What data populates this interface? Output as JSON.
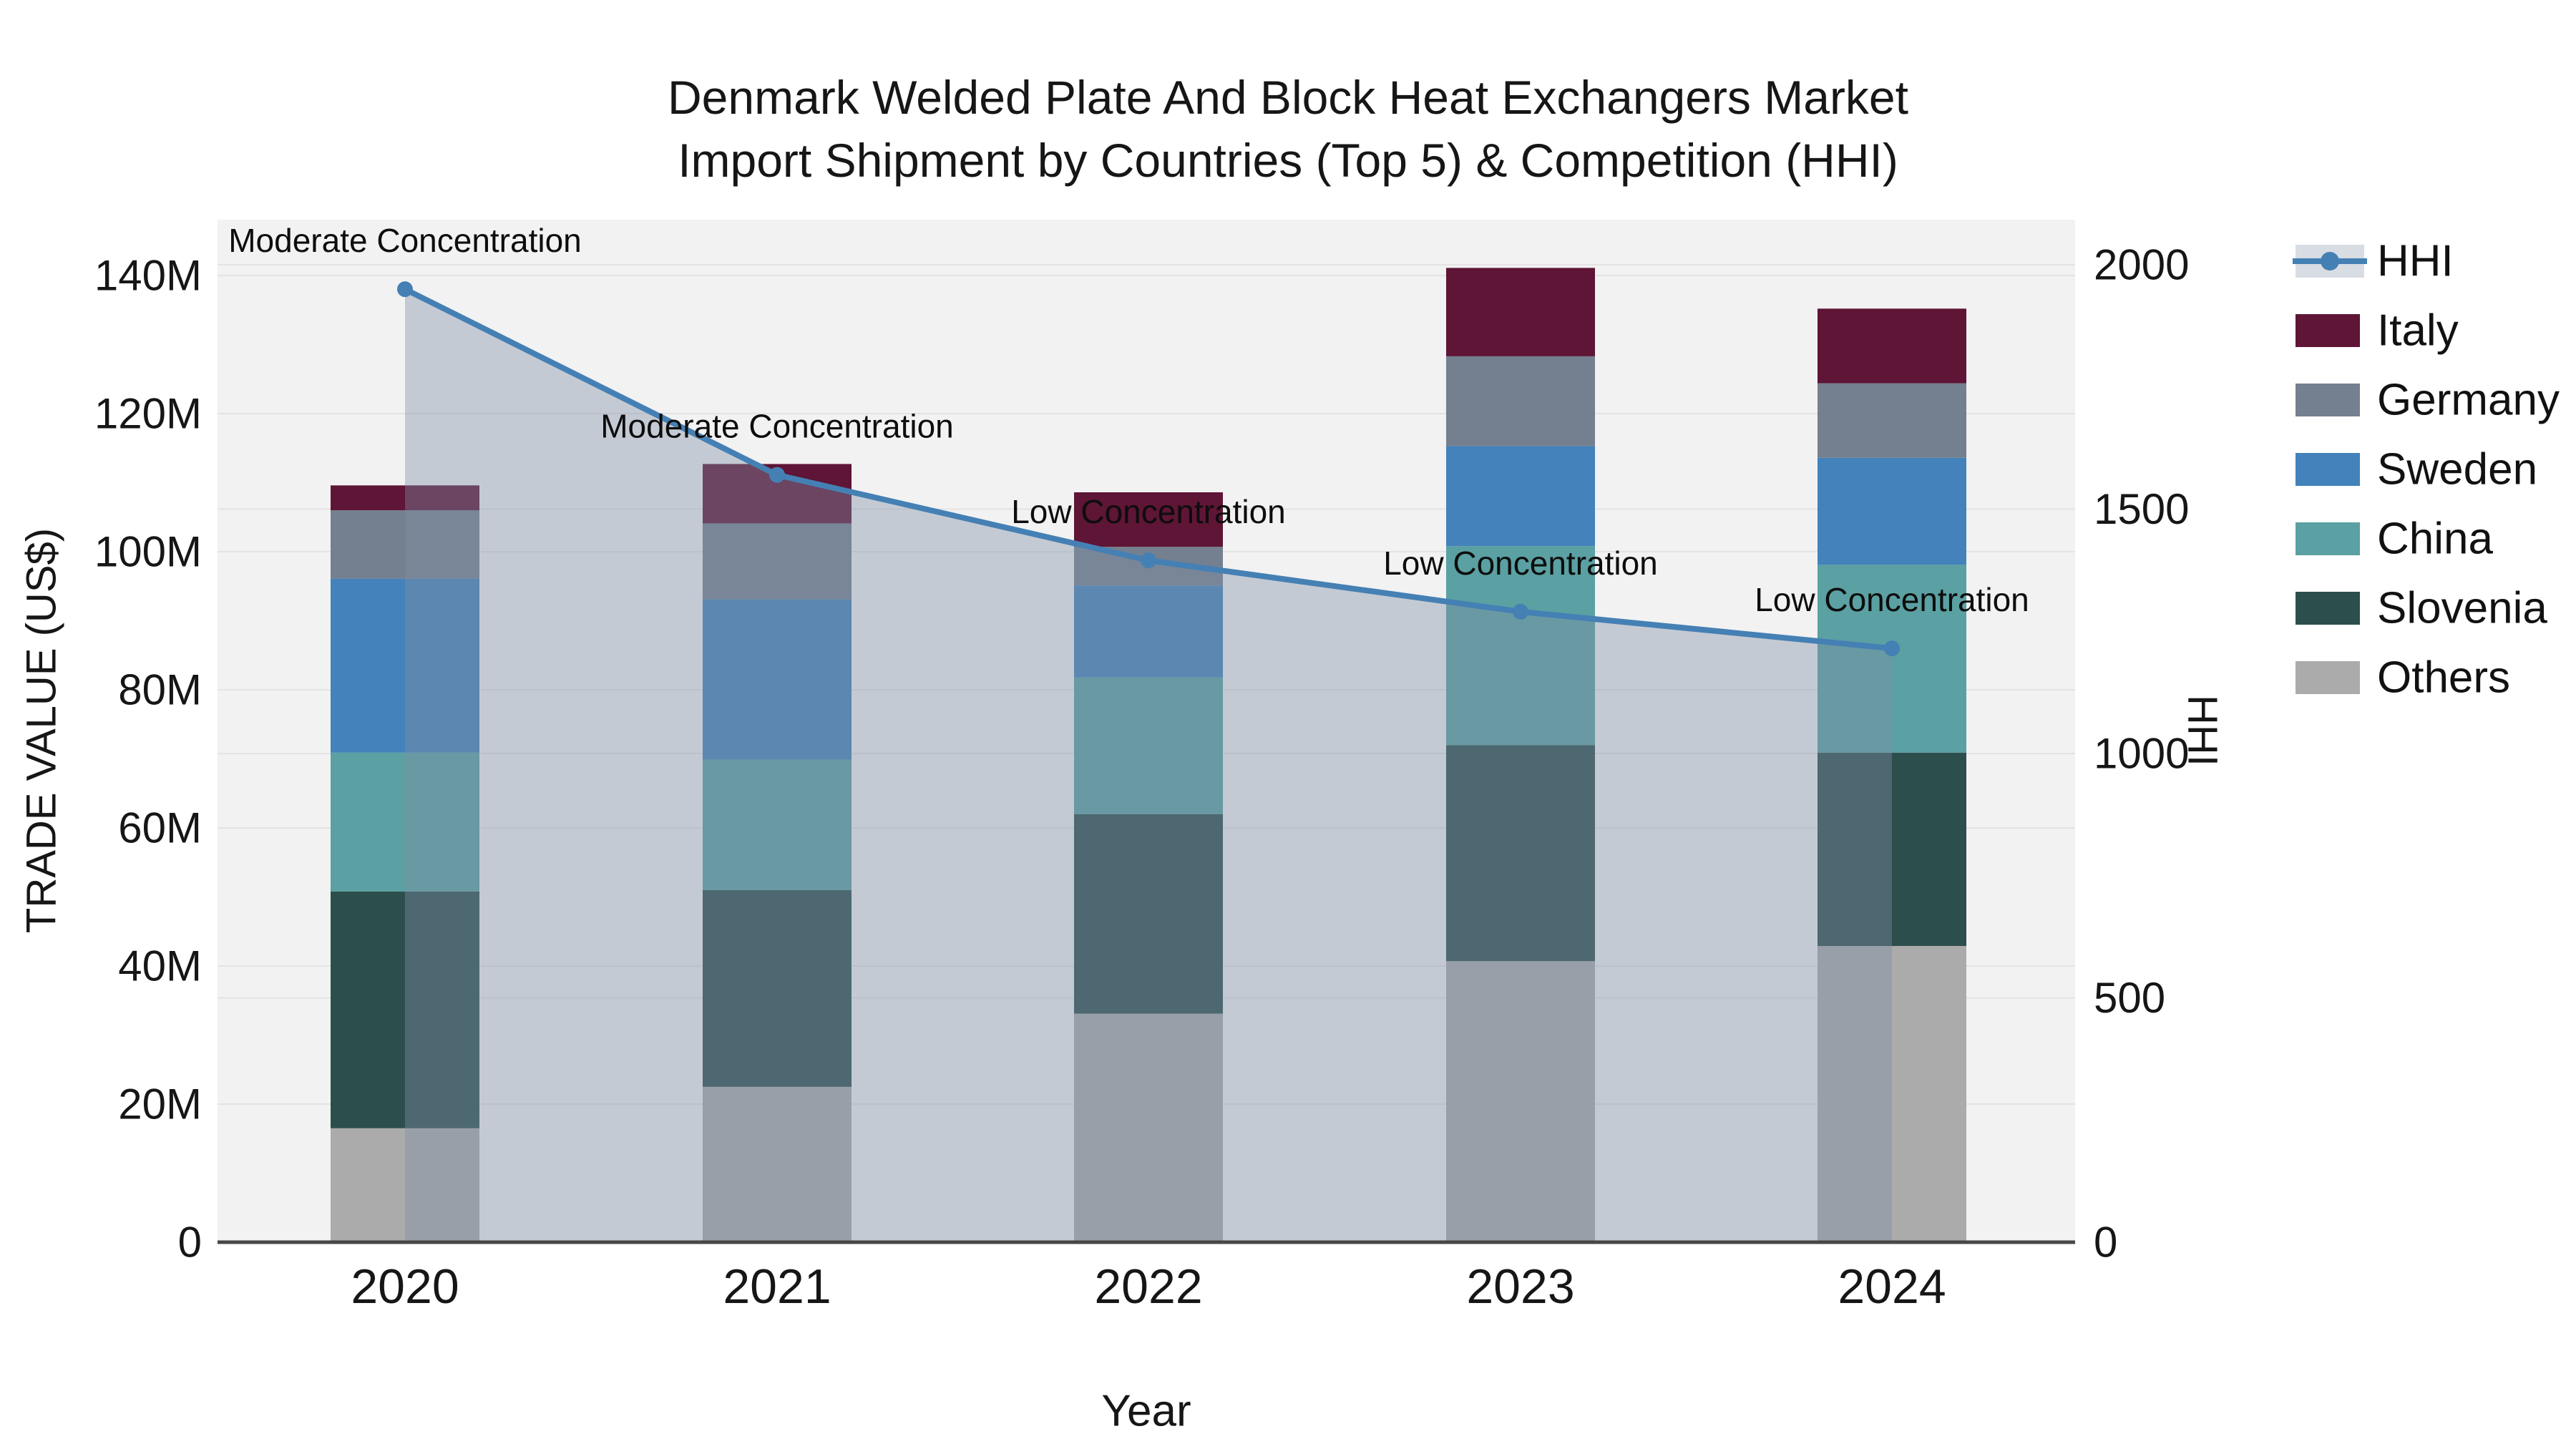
{
  "title": {
    "line1": "Denmark Welded Plate And Block Heat Exchangers Market",
    "line2": "Import Shipment by Countries (Top 5) & Competition (HHI)"
  },
  "axes": {
    "y_left": {
      "title": "TRADE VALUE (US$)",
      "tick_labels": [
        "0",
        "20M",
        "40M",
        "60M",
        "80M",
        "100M",
        "120M",
        "140M"
      ],
      "tick_values": [
        0,
        20,
        40,
        60,
        80,
        100,
        120,
        140
      ],
      "unit": "M US$"
    },
    "y_right": {
      "title": "HHI",
      "tick_labels": [
        "0",
        "500",
        "1000",
        "1500",
        "2000"
      ],
      "tick_values": [
        0,
        500,
        1000,
        1500,
        2000
      ]
    },
    "x": {
      "title": "Year",
      "categories": [
        "2020",
        "2021",
        "2022",
        "2023",
        "2024"
      ]
    }
  },
  "chart_data": {
    "type": "combo-stacked-bar-with-line-area",
    "categories": [
      "2020",
      "2021",
      "2022",
      "2023",
      "2024"
    ],
    "stack_order_bottom_to_top": [
      "Others",
      "Slovenia",
      "China",
      "Sweden",
      "Germany",
      "Italy"
    ],
    "series": [
      {
        "name": "Italy",
        "color": "#5e1536",
        "values": [
          3.6,
          8.6,
          7.9,
          12.8,
          10.8
        ]
      },
      {
        "name": "Germany",
        "color": "#74808f",
        "values": [
          9.9,
          11.0,
          5.6,
          13.0,
          10.8
        ]
      },
      {
        "name": "Sweden",
        "color": "#4382ba",
        "values": [
          25.2,
          23.2,
          13.3,
          14.5,
          15.5
        ]
      },
      {
        "name": "China",
        "color": "#5ba0a2",
        "values": [
          20.1,
          18.9,
          19.8,
          28.8,
          27.2
        ]
      },
      {
        "name": "Slovenia",
        "color": "#2c4f4d",
        "values": [
          34.3,
          28.5,
          28.9,
          31.3,
          28.0
        ]
      },
      {
        "name": "Others",
        "color": "#ababab",
        "values": [
          16.5,
          22.5,
          33.1,
          40.7,
          42.9
        ]
      }
    ],
    "bar_totals_musd": [
      109.6,
      112.7,
      108.6,
      141.1,
      135.2
    ],
    "hhi": {
      "name": "HHI",
      "values": [
        1950,
        1570,
        1395,
        1290,
        1215
      ],
      "line_color": "#4580b4",
      "area_color": "rgba(127,143,166,0.40)",
      "legend_band_color": "#d8dce3"
    },
    "annotations": [
      {
        "x": "2020",
        "text": "Moderate Concentration"
      },
      {
        "x": "2021",
        "text": "Moderate Concentration"
      },
      {
        "x": "2022",
        "text": "Low Concentration"
      },
      {
        "x": "2023",
        "text": "Low Concentration"
      },
      {
        "x": "2024",
        "text": "Low Concentration"
      }
    ],
    "legend_order": [
      "HHI",
      "Italy",
      "Germany",
      "Sweden",
      "China",
      "Slovenia",
      "Others"
    ],
    "legend_position": "right"
  },
  "colors": {
    "page_background": "#ffffff",
    "plot_background": "#f2f2f2",
    "gridline": "#e3e3e3",
    "axis_line": "#474747",
    "text": "#161616"
  }
}
